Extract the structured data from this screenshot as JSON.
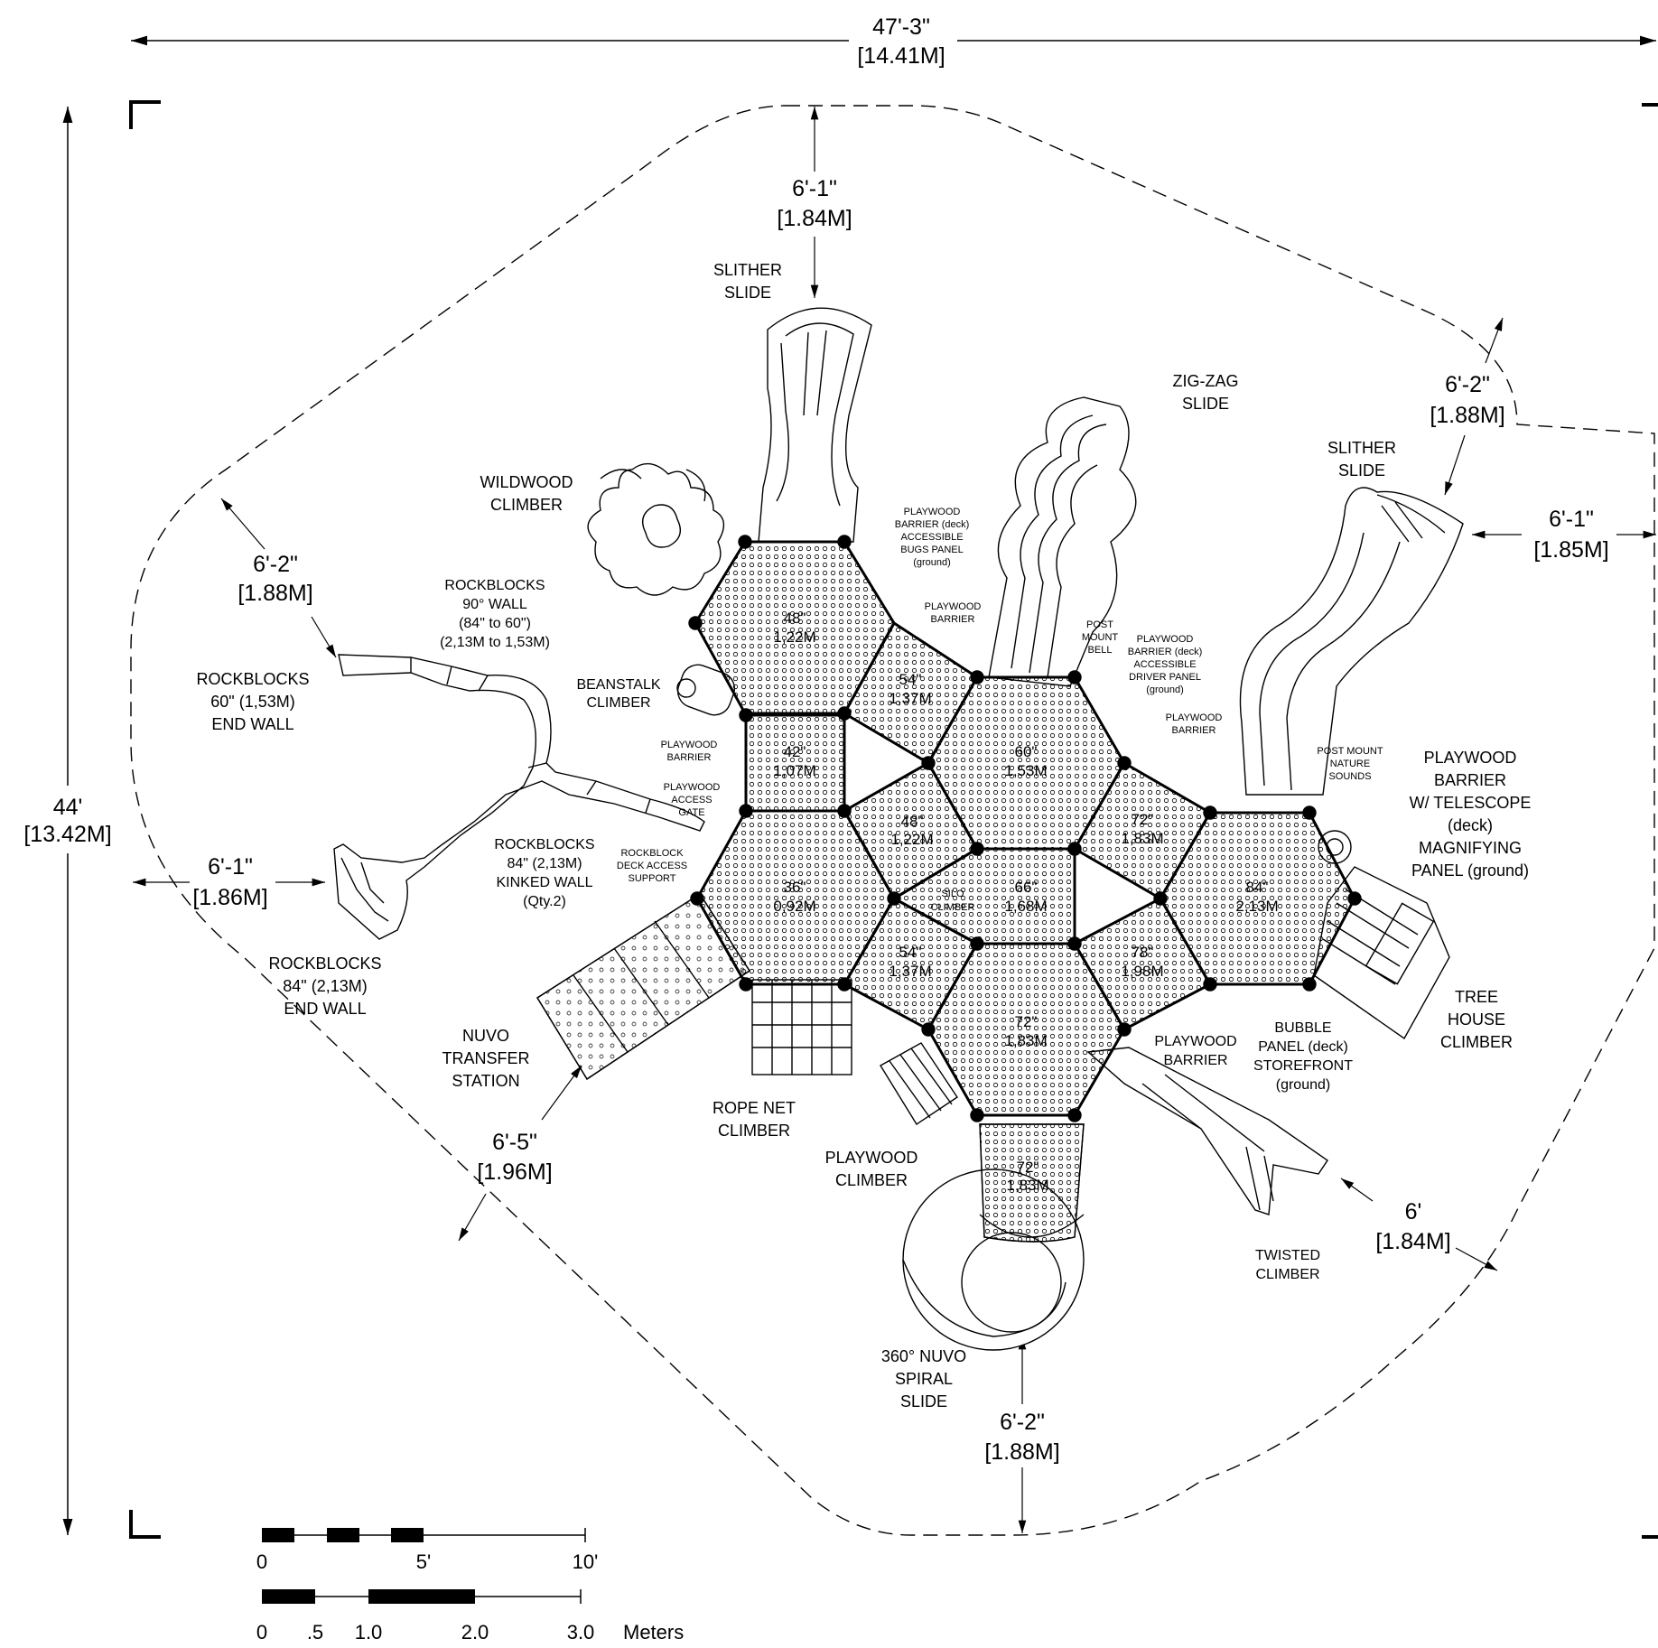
{
  "dimensions": {
    "overall_width": {
      "ft": "47'-3\"",
      "m": "[14.41M]"
    },
    "overall_height": {
      "ft": "44'",
      "m": "[13.42M]"
    },
    "top": {
      "ft": "6'-1\"",
      "m": "[1.84M]"
    },
    "upper_left": {
      "ft": "6'-2\"",
      "m": "[1.88M]"
    },
    "left": {
      "ft": "6'-1\"",
      "m": "[1.86M]"
    },
    "lower_left": {
      "ft": "6'-5\"",
      "m": "[1.96M]"
    },
    "bottom": {
      "ft": "6'-2\"",
      "m": "[1.88M]"
    },
    "lower_right": {
      "ft": "6'",
      "m": "[1.84M]"
    },
    "right": {
      "ft": "6'-1\"",
      "m": "[1.85M]"
    },
    "upper_right": {
      "ft": "6'-2\"",
      "m": "[1.88M]"
    }
  },
  "components": {
    "slither_slide_top": [
      "SLITHER",
      "SLIDE"
    ],
    "zig_zag_slide": [
      "ZIG-ZAG",
      "SLIDE"
    ],
    "slither_slide_right": [
      "SLITHER",
      "SLIDE"
    ],
    "wildwood_climber": [
      "WILDWOOD",
      "CLIMBER"
    ],
    "rockblocks_90_wall": [
      "ROCKBLOCKS",
      "90° WALL",
      "(84\" to 60\")",
      "(2,13M to 1,53M)"
    ],
    "rockblocks_60_end_wall": [
      "ROCKBLOCKS",
      "60\" (1,53M)",
      "END WALL"
    ],
    "beanstalk_climber": [
      "BEANSTALK",
      "CLIMBER"
    ],
    "rockblocks_kinked_wall": [
      "ROCKBLOCKS",
      "84\" (2,13M)",
      "KINKED WALL",
      "(Qty.2)"
    ],
    "rockblocks_84_end_wall": [
      "ROCKBLOCKS",
      "84\" (2,13M)",
      "END WALL"
    ],
    "nuvo_transfer_station": [
      "NUVO",
      "TRANSFER",
      "STATION"
    ],
    "rope_net_climber": [
      "ROPE NET",
      "CLIMBER"
    ],
    "playwood_climber": [
      "PLAYWOOD",
      "CLIMBER"
    ],
    "nuvo_spiral_slide": [
      "360° NUVO",
      "SPIRAL",
      "SLIDE"
    ],
    "twisted_climber": [
      "TWISTED",
      "CLIMBER"
    ],
    "playwood_barrier_lower": [
      "PLAYWOOD",
      "BARRIER"
    ],
    "bubble_panel": [
      "BUBBLE",
      "PANEL (deck)",
      "STOREFRONT",
      "(ground)"
    ],
    "tree_house_climber": [
      "TREE",
      "HOUSE",
      "CLIMBER"
    ],
    "telescope_barrier": [
      "PLAYWOOD",
      "BARRIER",
      "W/ TELESCOPE",
      "(deck)",
      "MAGNIFYING",
      "PANEL (ground)"
    ]
  },
  "small_labels": {
    "bugs_panel": [
      "PLAYWOOD",
      "BARRIER (deck)",
      "ACCESSIBLE",
      "BUGS PANEL",
      "(ground)"
    ],
    "barrier_top": [
      "PLAYWOOD",
      "BARRIER"
    ],
    "post_mount_bell": [
      "POST",
      "MOUNT",
      "BELL"
    ],
    "driver_panel": [
      "PLAYWOOD",
      "BARRIER (deck)",
      "ACCESSIBLE",
      "DRIVER PANEL",
      "(ground)"
    ],
    "barrier_right": [
      "PLAYWOOD",
      "BARRIER"
    ],
    "nature_sounds": [
      "POST MOUNT",
      "NATURE",
      "SOUNDS"
    ],
    "barrier_left": [
      "PLAYWOOD",
      "BARRIER"
    ],
    "access_gate": [
      "PLAYWOOD",
      "ACCESS",
      "GATE"
    ],
    "deck_access_support": [
      "ROCKBLOCK",
      "DECK ACCESS",
      "SUPPORT"
    ],
    "silo_climber": [
      "SILO",
      "CLIMBER"
    ]
  },
  "decks": [
    {
      "id": "d48a",
      "in": "48\"",
      "m": "1,22M"
    },
    {
      "id": "d54a",
      "in": "54\"",
      "m": "1,37M"
    },
    {
      "id": "d42",
      "in": "42\"",
      "m": "1,07M"
    },
    {
      "id": "d60",
      "in": "60\"",
      "m": "1,53M"
    },
    {
      "id": "d48b",
      "in": "48\"",
      "m": "1,22M"
    },
    {
      "id": "d72a",
      "in": "72\"",
      "m": "1,83M"
    },
    {
      "id": "d36",
      "in": "36\"",
      "m": "0,92M"
    },
    {
      "id": "d66",
      "in": "66\"",
      "m": "1,68M"
    },
    {
      "id": "d84",
      "in": "84\"",
      "m": "2,13M"
    },
    {
      "id": "d54b",
      "in": "54\"",
      "m": "1,37M"
    },
    {
      "id": "d78",
      "in": "78\"",
      "m": "1,98M"
    },
    {
      "id": "d72b",
      "in": "72\"",
      "m": "1,83M"
    },
    {
      "id": "d72c",
      "in": "72\"",
      "m": "1,83M"
    }
  ],
  "scale_bar": {
    "feet_ticks": [
      "0",
      "5'",
      "10'"
    ],
    "meter_ticks": [
      "0",
      ".5",
      "1.0",
      "2.0",
      "3.0"
    ],
    "meter_unit": "Meters"
  }
}
